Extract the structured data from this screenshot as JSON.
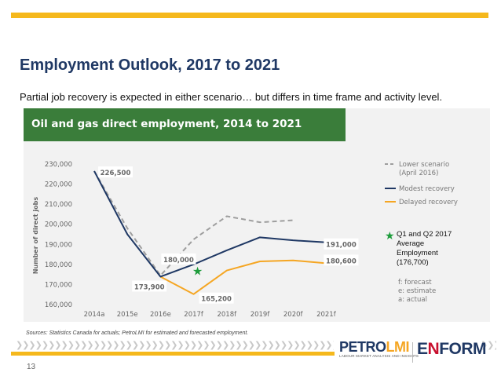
{
  "slide": {
    "title": "Employment Outlook, 2017 to 2021",
    "subtitle": "Partial job recovery is expected in either scenario… but differs in time frame and activity level.",
    "sources": "Sources: Statistics Canada for actuals; PetroLMI for estimated and forecasted employment.",
    "page_number": "13",
    "star_note": "Q1 and Q2 2017 Average Employment (176,700)",
    "logos": {
      "petro_a": "PETRO",
      "petro_b": "LMI",
      "petro_tagline": "LABOUR MARKET ANALYSIS AND INSIGHTS",
      "enform_a": "E",
      "enform_b": "N",
      "enform_c": "FORM"
    },
    "colors": {
      "accent": "#f5b81c",
      "header_green": "#3a7d3a",
      "title_navy": "#1f3864",
      "star_green": "#1e9c3c"
    },
    "icons": {
      "star": "star-icon",
      "chevrons": "chevron-right-icon"
    }
  },
  "chart_data": {
    "type": "line",
    "title": "Oil and gas direct employment, 2014 to 2021",
    "ylabel": "Number of direct jobs",
    "xlabel": "",
    "categories": [
      "2014a",
      "2015e",
      "2016e",
      "2017f",
      "2018f",
      "2019f",
      "2020f",
      "2021f"
    ],
    "yticks": [
      "160,000",
      "170,000",
      "180,000",
      "190,000",
      "200,000",
      "210,000",
      "220,000",
      "230,000"
    ],
    "ylim": [
      160000,
      230000
    ],
    "series": [
      {
        "name": "Lower scenario (April 2016)",
        "color": "#9e9e9e",
        "dash": true,
        "values": [
          226500,
          198000,
          174500,
          192500,
          204000,
          201000,
          202000,
          null
        ]
      },
      {
        "name": "Modest recovery",
        "color": "#1f3864",
        "dash": false,
        "values": [
          226500,
          195000,
          173900,
          180000,
          187000,
          193500,
          192000,
          191000
        ]
      },
      {
        "name": "Delayed recovery",
        "color": "#f5a623",
        "dash": false,
        "values": [
          null,
          null,
          173900,
          165200,
          177000,
          181500,
          182000,
          180600
        ]
      }
    ],
    "annotations": [
      "226,500",
      "180,000",
      "173,900",
      "165,200",
      "191,000",
      "180,600"
    ],
    "marker": {
      "category": "2017f",
      "value": 176700
    },
    "legend": [
      "Lower scenario",
      "(April 2016)",
      "Modest recovery",
      "Delayed recovery"
    ],
    "legend_position": "right",
    "notes": [
      "f: forecast",
      "e: estimate",
      "a: actual"
    ],
    "grid": false
  }
}
